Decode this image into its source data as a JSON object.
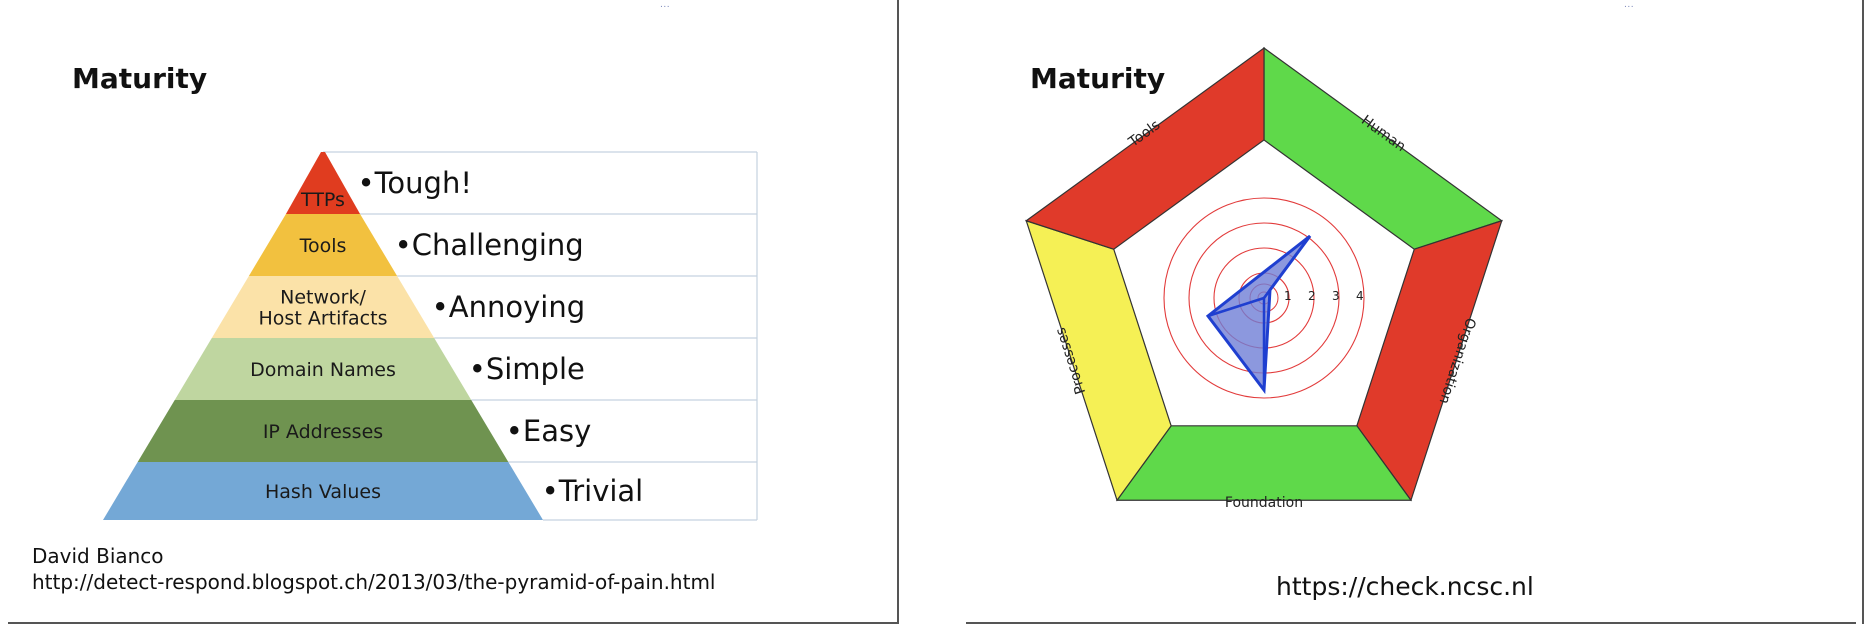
{
  "left_slide": {
    "title": "Maturity",
    "logo_text": "...",
    "pyramid": [
      {
        "label_lines": [
          "TTPs"
        ],
        "difficulty": "•Tough!",
        "color": "#e03c1f"
      },
      {
        "label_lines": [
          "Tools"
        ],
        "difficulty": "•Challenging",
        "color": "#f2c13f"
      },
      {
        "label_lines": [
          "Network/",
          "Host Artifacts"
        ],
        "difficulty": "•Annoying",
        "color": "#fbe2a8"
      },
      {
        "label_lines": [
          "Domain Names"
        ],
        "difficulty": "•Simple",
        "color": "#bfd6a0"
      },
      {
        "label_lines": [
          "IP Addresses"
        ],
        "difficulty": "•Easy",
        "color": "#6f9350"
      },
      {
        "label_lines": [
          "Hash Values"
        ],
        "difficulty": "•Trivial",
        "color": "#74a8d6"
      }
    ],
    "credit_author": "David Bianco",
    "credit_url": "http://detect-respond.blogspot.ch/2013/03/the-pyramid-of-pain.html"
  },
  "right_slide": {
    "title": "Maturity",
    "logo_text": "...",
    "segments": [
      {
        "label": "Tools",
        "color": "#e03a2a"
      },
      {
        "label": "Human",
        "color": "#5fd94a"
      },
      {
        "label": "Organization",
        "color": "#e03a2a"
      },
      {
        "label": "Foundation",
        "color": "#5fd94a"
      },
      {
        "label": "Processes",
        "color": "#f5f055"
      }
    ],
    "scale_labels": [
      "1",
      "2",
      "3",
      "4"
    ],
    "url": "https://check.ncsc.nl"
  }
}
